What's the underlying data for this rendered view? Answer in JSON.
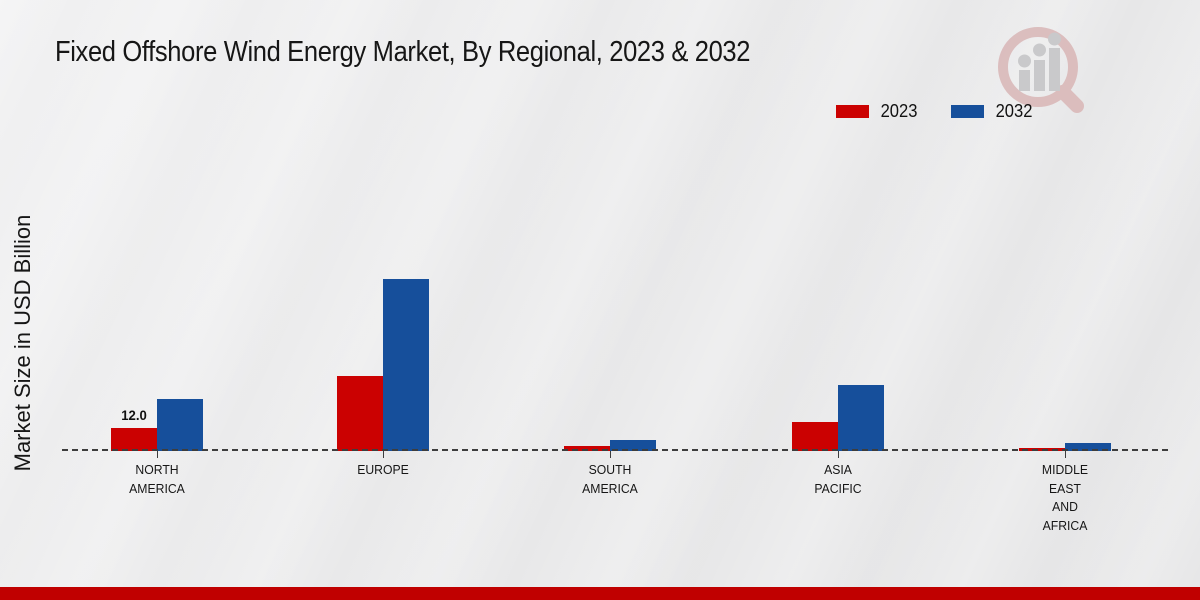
{
  "title": "Fixed Offshore Wind Energy Market, By Regional, 2023 & 2032",
  "chart_data": {
    "type": "bar",
    "title": "Fixed Offshore Wind Energy Market, By Regional, 2023 & 2032",
    "ylabel": "Market Size in USD Billion",
    "xlabel": "",
    "categories": [
      "NORTH\nAMERICA",
      "EUROPE",
      "SOUTH\nAMERICA",
      "ASIA\nPACIFIC",
      "MIDDLE\nEAST\nAND\nAFRICA"
    ],
    "series": [
      {
        "name": "2023",
        "color": "#cb0101",
        "values": [
          12.0,
          39.0,
          2.6,
          15.0,
          1.5
        ]
      },
      {
        "name": "2032",
        "color": "#164f9b",
        "values": [
          27.0,
          90.0,
          5.7,
          34.5,
          4.2
        ]
      }
    ],
    "data_labels": [
      {
        "series": "2023",
        "category_index": 0,
        "text": "12.0"
      }
    ],
    "ylim": [
      0,
      100
    ],
    "grid": "none",
    "baseline": "dashed",
    "legend_position": "top-right"
  },
  "icons": {
    "watermark": "magnifier-bar-chart-logo"
  },
  "colors": {
    "red_2023": "#cb0101",
    "blue_2032": "#164f9b",
    "footer_band": "#c00000",
    "background": "#ebebec",
    "baseline": "#3d3d3d",
    "watermark_pink": "#dab9b9",
    "watermark_gray": "#c6c6c8"
  }
}
